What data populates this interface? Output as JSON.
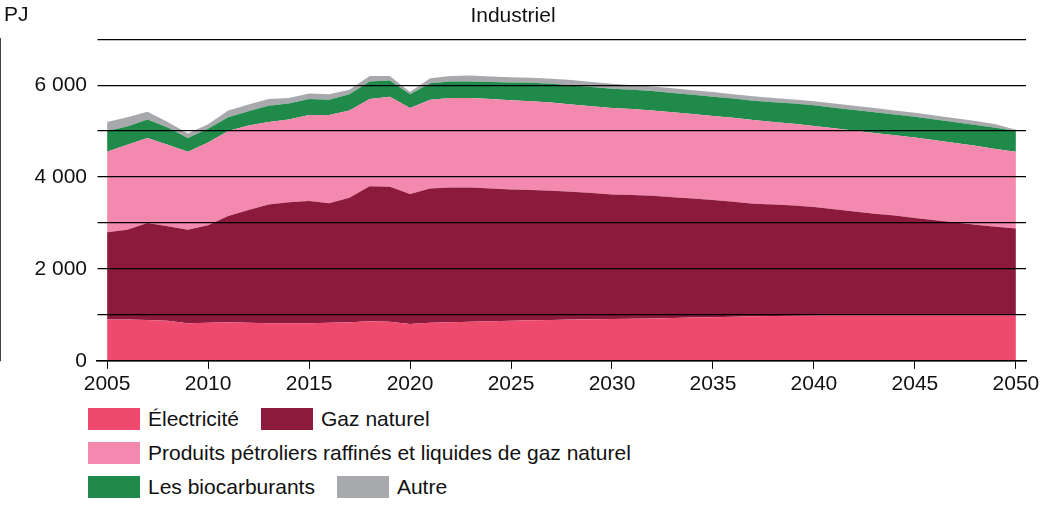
{
  "chart_data": {
    "type": "area",
    "title": "Industriel",
    "y_label": "PJ",
    "stacked": true,
    "grid": true,
    "legend": "bottom left",
    "x": [
      2005,
      2006,
      2007,
      2008,
      2009,
      2010,
      2011,
      2012,
      2013,
      2014,
      2015,
      2016,
      2017,
      2018,
      2019,
      2020,
      2021,
      2022,
      2023,
      2024,
      2025,
      2026,
      2027,
      2028,
      2029,
      2030,
      2031,
      2032,
      2033,
      2034,
      2035,
      2036,
      2037,
      2038,
      2039,
      2040,
      2041,
      2042,
      2043,
      2044,
      2045,
      2046,
      2047,
      2048,
      2049,
      2050
    ],
    "xlim": [
      2004.5,
      2050.5
    ],
    "xticks": [
      2005,
      2010,
      2015,
      2020,
      2025,
      2030,
      2035,
      2040,
      2045,
      2050
    ],
    "ylim": [
      0,
      7000
    ],
    "yticks": [
      0,
      {
        "value": 1000,
        "label": null
      },
      {
        "value": 2000,
        "label": "2 000"
      },
      {
        "value": 3000,
        "label": null
      },
      {
        "value": 4000,
        "label": "4 000"
      },
      {
        "value": 5000,
        "label": null
      },
      {
        "value": 6000,
        "label": "6 000"
      },
      {
        "value": 7000,
        "label": null
      }
    ],
    "series": [
      {
        "name": "Électricité",
        "color": "#ee4a6e",
        "values": [
          900,
          900,
          890,
          870,
          820,
          830,
          840,
          830,
          820,
          820,
          820,
          830,
          840,
          860,
          850,
          800,
          830,
          840,
          850,
          860,
          870,
          880,
          890,
          900,
          905,
          910,
          915,
          920,
          930,
          940,
          950,
          960,
          970,
          975,
          980,
          985,
          990,
          990,
          990,
          990,
          990,
          990,
          990,
          990,
          990,
          990
        ]
      },
      {
        "name": "Gaz naturel",
        "color": "#8b1a3c",
        "values": [
          1900,
          1950,
          2110,
          2060,
          2030,
          2120,
          2310,
          2450,
          2580,
          2630,
          2660,
          2600,
          2710,
          2940,
          2940,
          2830,
          2920,
          2930,
          2920,
          2890,
          2860,
          2840,
          2810,
          2780,
          2745,
          2710,
          2695,
          2670,
          2630,
          2590,
          2550,
          2500,
          2450,
          2425,
          2400,
          2365,
          2310,
          2260,
          2210,
          2170,
          2120,
          2070,
          2020,
          1970,
          1930,
          1890
        ]
      },
      {
        "name": "Produits pétroliers raffinés et liquides de gaz naturel",
        "color": "#f389ae",
        "values": [
          1750,
          1850,
          1850,
          1770,
          1700,
          1800,
          1850,
          1840,
          1800,
          1800,
          1870,
          1920,
          1900,
          1900,
          1960,
          1870,
          1930,
          1950,
          1950,
          1950,
          1940,
          1930,
          1920,
          1900,
          1890,
          1880,
          1870,
          1860,
          1850,
          1840,
          1830,
          1830,
          1820,
          1800,
          1780,
          1760,
          1760,
          1760,
          1760,
          1750,
          1750,
          1740,
          1730,
          1720,
          1690,
          1670
        ]
      },
      {
        "name": "Les biocarburants",
        "color": "#1f8a4a",
        "values": [
          450,
          400,
          400,
          380,
          300,
          300,
          300,
          310,
          350,
          350,
          350,
          330,
          350,
          380,
          350,
          300,
          360,
          360,
          360,
          370,
          390,
          400,
          410,
          420,
          420,
          420,
          420,
          420,
          420,
          420,
          420,
          420,
          420,
          430,
          440,
          450,
          450,
          450,
          450,
          450,
          450,
          450,
          450,
          450,
          460,
          450
        ]
      },
      {
        "name": "Autre",
        "color": "#a7a9ac",
        "values": [
          200,
          200,
          170,
          120,
          100,
          100,
          150,
          150,
          150,
          120,
          120,
          120,
          100,
          120,
          100,
          50,
          110,
          120,
          130,
          120,
          110,
          110,
          110,
          110,
          110,
          110,
          100,
          100,
          100,
          100,
          100,
          90,
          100,
          90,
          90,
          90,
          90,
          90,
          90,
          90,
          90,
          90,
          90,
          90,
          80,
          30
        ]
      }
    ]
  }
}
